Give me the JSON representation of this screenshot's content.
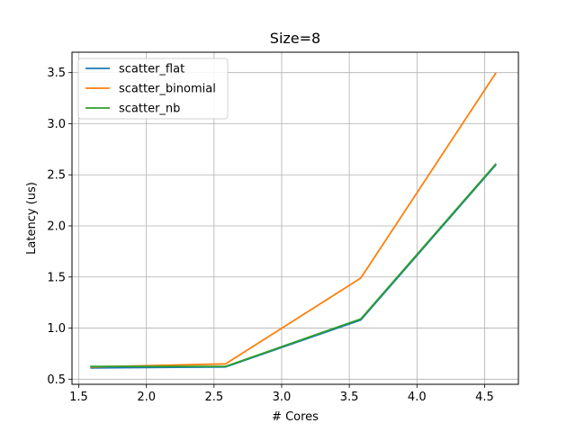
{
  "chart_data": {
    "type": "line",
    "title": "Size=8",
    "xlabel": "# Cores",
    "ylabel": "Latency (us)",
    "xlim": [
      1.45,
      4.75
    ],
    "ylim": [
      0.45,
      3.7
    ],
    "xticks": [
      "1.5",
      "2.0",
      "2.5",
      "3.0",
      "3.5",
      "4.0",
      "4.5"
    ],
    "yticks": [
      "0.5",
      "1.0",
      "1.5",
      "2.0",
      "2.5",
      "3.0",
      "3.5"
    ],
    "grid": true,
    "legend_position": "upper-left",
    "x": [
      1.585,
      2.585,
      3.585,
      4.585
    ],
    "series": [
      {
        "name": "scatter_flat",
        "color": "#1f77b4",
        "values": [
          0.61,
          0.62,
          1.08,
          2.6
        ]
      },
      {
        "name": "scatter_binomial",
        "color": "#ff7f0e",
        "values": [
          0.62,
          0.65,
          1.49,
          3.5
        ]
      },
      {
        "name": "scatter_nb",
        "color": "#2ca02c",
        "values": [
          0.625,
          0.625,
          1.09,
          2.61
        ]
      }
    ]
  }
}
